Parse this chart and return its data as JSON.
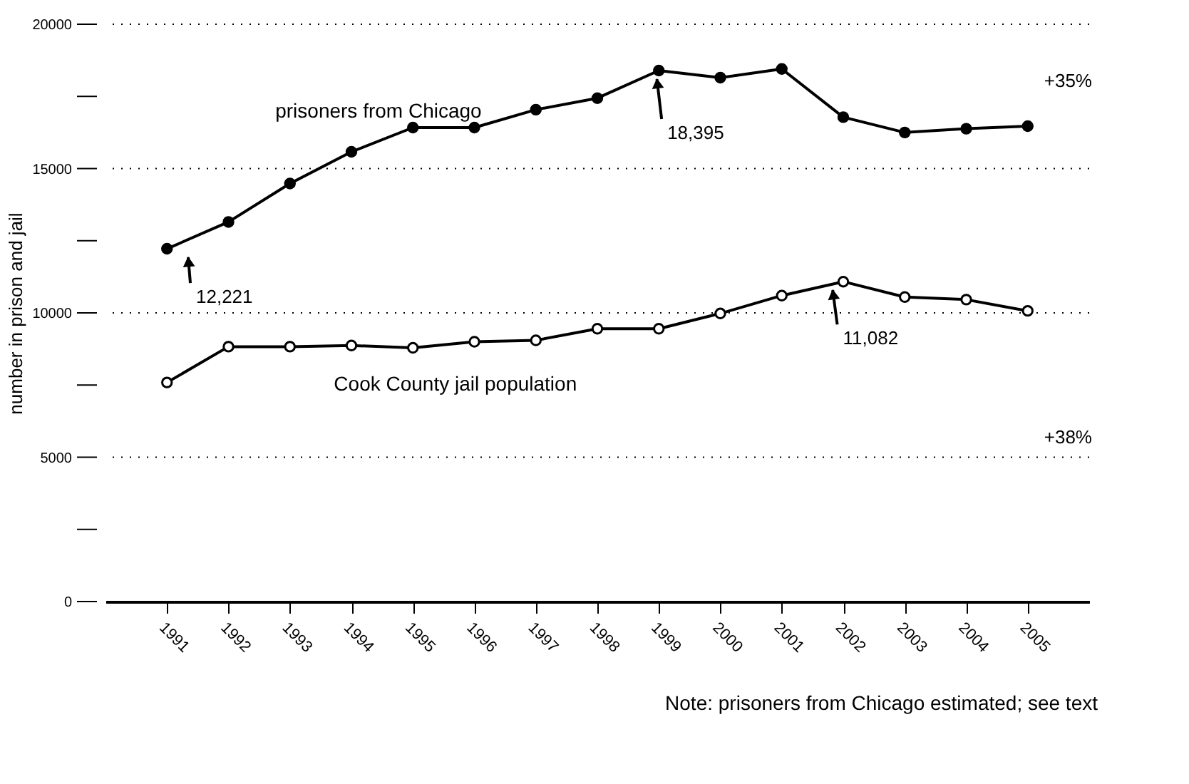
{
  "chart_data": {
    "type": "line",
    "ylabel": "number in prison and jail",
    "categories": [
      "1991",
      "1992",
      "1993",
      "1994",
      "1995",
      "1996",
      "1997",
      "1998",
      "1999",
      "2000",
      "2001",
      "2002",
      "2003",
      "2004",
      "2005"
    ],
    "series": [
      {
        "name": "prisoners from Chicago",
        "color": "#000000",
        "marker": "circle",
        "values": [
          12221,
          13150,
          14480,
          15580,
          16420,
          16420,
          17040,
          17440,
          18395,
          18150,
          18450,
          16780,
          16250,
          16380,
          16470
        ]
      },
      {
        "name": "Cook County jail population",
        "color": "#000000",
        "marker": "circle",
        "values": [
          7590,
          8830,
          8830,
          8870,
          8790,
          9000,
          9050,
          9450,
          9450,
          9980,
          10600,
          11082,
          10550,
          10460,
          10070
        ]
      }
    ],
    "ylim": [
      0,
      20000
    ],
    "yticks": [
      0,
      {
        "value": 2500,
        "label": null
      },
      5000,
      {
        "value": 7500,
        "label": null
      },
      10000,
      {
        "value": 12500,
        "label": null
      },
      15000,
      {
        "value": 17500,
        "label": null
      },
      20000
    ],
    "grid": "y",
    "legend": false,
    "line_style": "solid",
    "annotations": [
      {
        "text": "12,221",
        "x": "1991",
        "y": 12221
      },
      {
        "text": "18,395",
        "x": "1999",
        "y": 18395
      },
      {
        "text": "11,082",
        "x": "2002",
        "y": 11082
      },
      "+35%",
      "+38%",
      "Note: prisoners from Chicago estimated; see text"
    ]
  }
}
